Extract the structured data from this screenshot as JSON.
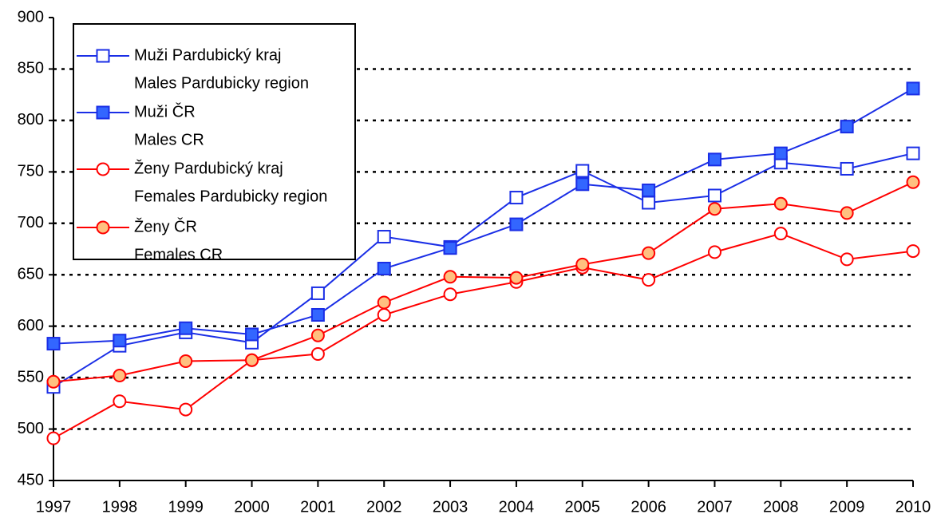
{
  "chart_data": {
    "type": "line",
    "x": [
      1997,
      1998,
      1999,
      2000,
      2001,
      2002,
      2003,
      2004,
      2005,
      2006,
      2007,
      2008,
      2009,
      2010
    ],
    "xlim": [
      1997,
      2010
    ],
    "xticks": [
      1997,
      1998,
      1999,
      2000,
      2001,
      2002,
      2003,
      2004,
      2005,
      2006,
      2007,
      2008,
      2009,
      2010
    ],
    "ylim": [
      450,
      900
    ],
    "yticks": [
      450,
      500,
      550,
      600,
      650,
      700,
      750,
      800,
      850,
      900
    ],
    "grid": true,
    "legend": "upper left",
    "series": [
      {
        "name": [
          "Muži Pardubický kraj",
          "Males Pardubicky region"
        ],
        "color": "#1a2ee6",
        "marker": "square",
        "marker_fill": "#ffffff",
        "values": [
          541,
          581,
          594,
          584,
          632,
          687,
          677,
          725,
          751,
          720,
          727,
          759,
          753,
          768
        ]
      },
      {
        "name": [
          "Muži ČR",
          "Males CR"
        ],
        "color": "#1a2ee6",
        "marker": "square",
        "marker_fill": "#3366ff",
        "values": [
          583,
          586,
          598,
          592,
          611,
          656,
          676,
          699,
          738,
          732,
          762,
          768,
          794,
          831
        ]
      },
      {
        "name": [
          "Ženy Pardubický kraj",
          "Females Pardubicky region"
        ],
        "color": "#ff0000",
        "marker": "circle",
        "marker_fill": "#ffffff",
        "values": [
          491,
          527,
          519,
          567,
          573,
          611,
          631,
          643,
          657,
          645,
          672,
          690,
          665,
          673
        ]
      },
      {
        "name": [
          "Ženy ČR",
          "Females CR"
        ],
        "color": "#ff0000",
        "marker": "circle",
        "marker_fill": "#ffc080",
        "values": [
          546,
          552,
          566,
          567,
          591,
          623,
          648,
          647,
          660,
          671,
          714,
          719,
          710,
          740
        ]
      }
    ]
  }
}
